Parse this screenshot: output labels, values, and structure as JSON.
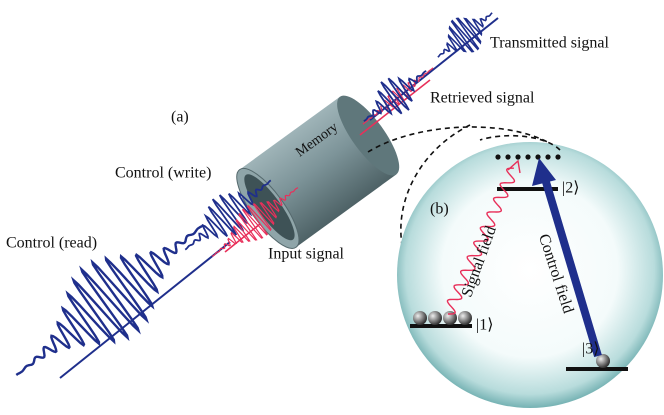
{
  "panel_a": {
    "label": "(a)",
    "memory": "Memory",
    "control_write": "Control (write)",
    "control_read": "Control (read)",
    "input_signal": "Input signal",
    "retrieved_signal": "Retrieved signal",
    "transmitted_signal": "Transmitted signal"
  },
  "panel_b": {
    "label": "(b)",
    "signal_field": "Signal field",
    "control_field": "Control field",
    "level_1": "|1⟩",
    "level_2": "|2⟩",
    "level_3": "|3⟩"
  }
}
